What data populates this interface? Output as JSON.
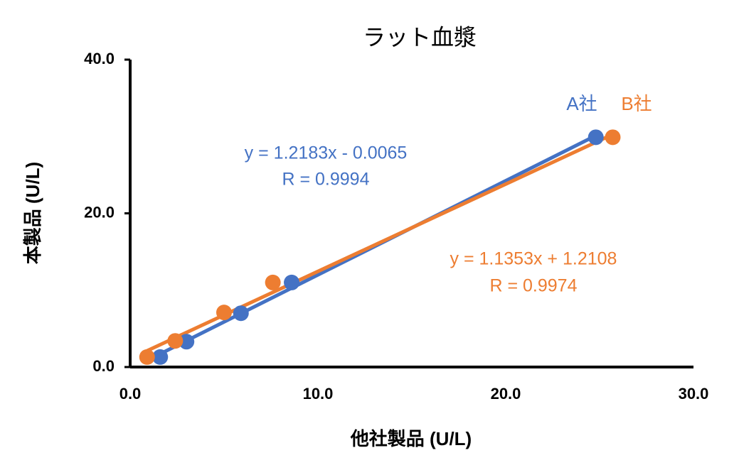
{
  "chart_data": {
    "type": "scatter",
    "title": "ラット血漿",
    "x_label": "他社製品 (U/L)",
    "y_label": "本製品 (U/L)",
    "xlim": [
      0,
      30
    ],
    "xticks": [
      {
        "value": 0,
        "label": "0.0"
      },
      {
        "value": 10,
        "label": "10.0"
      },
      {
        "value": 20,
        "label": "20.0"
      },
      {
        "value": 30,
        "label": "30.0"
      }
    ],
    "ylim": [
      0,
      40
    ],
    "yticks": [
      {
        "value": 0,
        "label": "0.0"
      },
      {
        "value": 20,
        "label": "20.0"
      },
      {
        "value": 40,
        "label": "40.0"
      }
    ],
    "trendline": true,
    "series": [
      {
        "name": "A社",
        "color": "#4472c4",
        "equation": "y = 1.2183x - 0.0065",
        "r_label": "R = 0.9994",
        "x": [
          1.6,
          3.0,
          5.9,
          8.6,
          24.8
        ],
        "values": [
          1.3,
          3.3,
          7.0,
          11.0,
          29.9
        ]
      },
      {
        "name": "B社",
        "color": "#ed7d31",
        "equation": "y = 1.1353x + 1.2108",
        "r_label": "R = 0.9974",
        "x": [
          0.9,
          2.4,
          5.0,
          7.6,
          25.7
        ],
        "values": [
          1.3,
          3.4,
          7.1,
          11.0,
          29.9
        ]
      }
    ]
  }
}
